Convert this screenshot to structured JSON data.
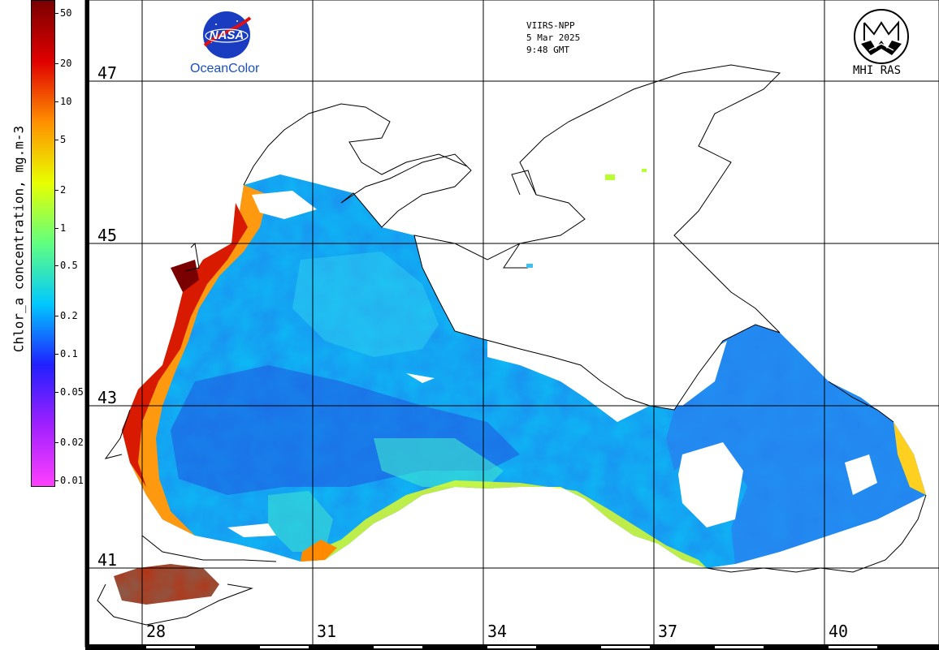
{
  "colorbar": {
    "title": "Chlor_a concentration, mg.m-3",
    "ticks": [
      "50",
      "20",
      "10",
      "5",
      "2",
      "1",
      "0.5",
      "0.2",
      "0.1",
      "0.05",
      "0.02",
      "0.01"
    ],
    "colors": [
      "#ff40ff",
      "#a020ff",
      "#2020ff",
      "#00c8ff",
      "#60ff80",
      "#e8ff00",
      "#ff9000",
      "#e00000",
      "#7a0000"
    ]
  },
  "header": {
    "sensor": "VIIRS-NPP",
    "date": "5 Mar 2025",
    "time": "9:48 GMT",
    "brand_left": "OceanColor",
    "brand_left_logo_text": "NASA",
    "brand_right": "MHI RAS"
  },
  "grid": {
    "latitudes": [
      "47",
      "45",
      "43",
      "41"
    ],
    "longitudes": [
      "28",
      "31",
      "34",
      "37",
      "40"
    ]
  }
}
